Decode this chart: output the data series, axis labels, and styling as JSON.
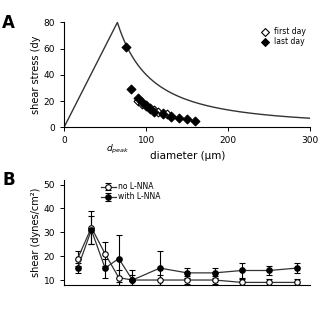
{
  "panel_A": {
    "dpeak_x": 65,
    "scatter_open_x": [
      90,
      95,
      100,
      105,
      110,
      115,
      120,
      125,
      130
    ],
    "scatter_open_y": [
      20,
      18,
      16,
      15,
      13,
      12,
      11,
      10,
      9
    ],
    "scatter_filled_x": [
      75,
      82,
      90,
      95,
      100,
      105,
      110,
      120,
      130,
      140,
      150,
      160
    ],
    "scatter_filled_y": [
      61,
      29,
      22,
      19,
      17,
      14,
      12,
      10,
      8,
      7,
      6,
      5
    ],
    "xlim": [
      0,
      300
    ],
    "ylim": [
      -5,
      90
    ],
    "xticks": [
      0,
      100,
      200,
      300
    ],
    "yticks": [
      0,
      20,
      40,
      60,
      80
    ],
    "xlabel": "diameter (μm)",
    "ylabel": "shear stress (dy"
  },
  "panel_B": {
    "no_lnna_x": [
      50,
      75,
      100,
      125,
      150,
      200,
      250,
      300,
      350,
      400,
      450
    ],
    "no_lnna_y": [
      19,
      32,
      21,
      11,
      10,
      10,
      10,
      10,
      9,
      9,
      9
    ],
    "no_lnna_yerr": [
      3,
      7,
      5,
      3,
      2,
      2,
      1.5,
      1.5,
      1.5,
      1.5,
      1.5
    ],
    "with_lnna_x": [
      50,
      75,
      100,
      125,
      150,
      200,
      250,
      300,
      350,
      400,
      450
    ],
    "with_lnna_y": [
      15,
      31,
      15,
      19,
      10,
      15,
      13,
      13,
      14,
      14,
      15
    ],
    "with_lnna_yerr": [
      2,
      6,
      4,
      10,
      4,
      7,
      2,
      2,
      3,
      2,
      2
    ],
    "xlim": [
      25,
      475
    ],
    "ylim": [
      8,
      52
    ],
    "yticks": [
      10,
      20,
      30,
      40,
      50
    ],
    "ylabel": "shear (dynes/cm²)"
  },
  "bg_color": "#ffffff",
  "line_color": "#333333",
  "open_marker_color": "#ffffff",
  "filled_marker_color": "#000000"
}
